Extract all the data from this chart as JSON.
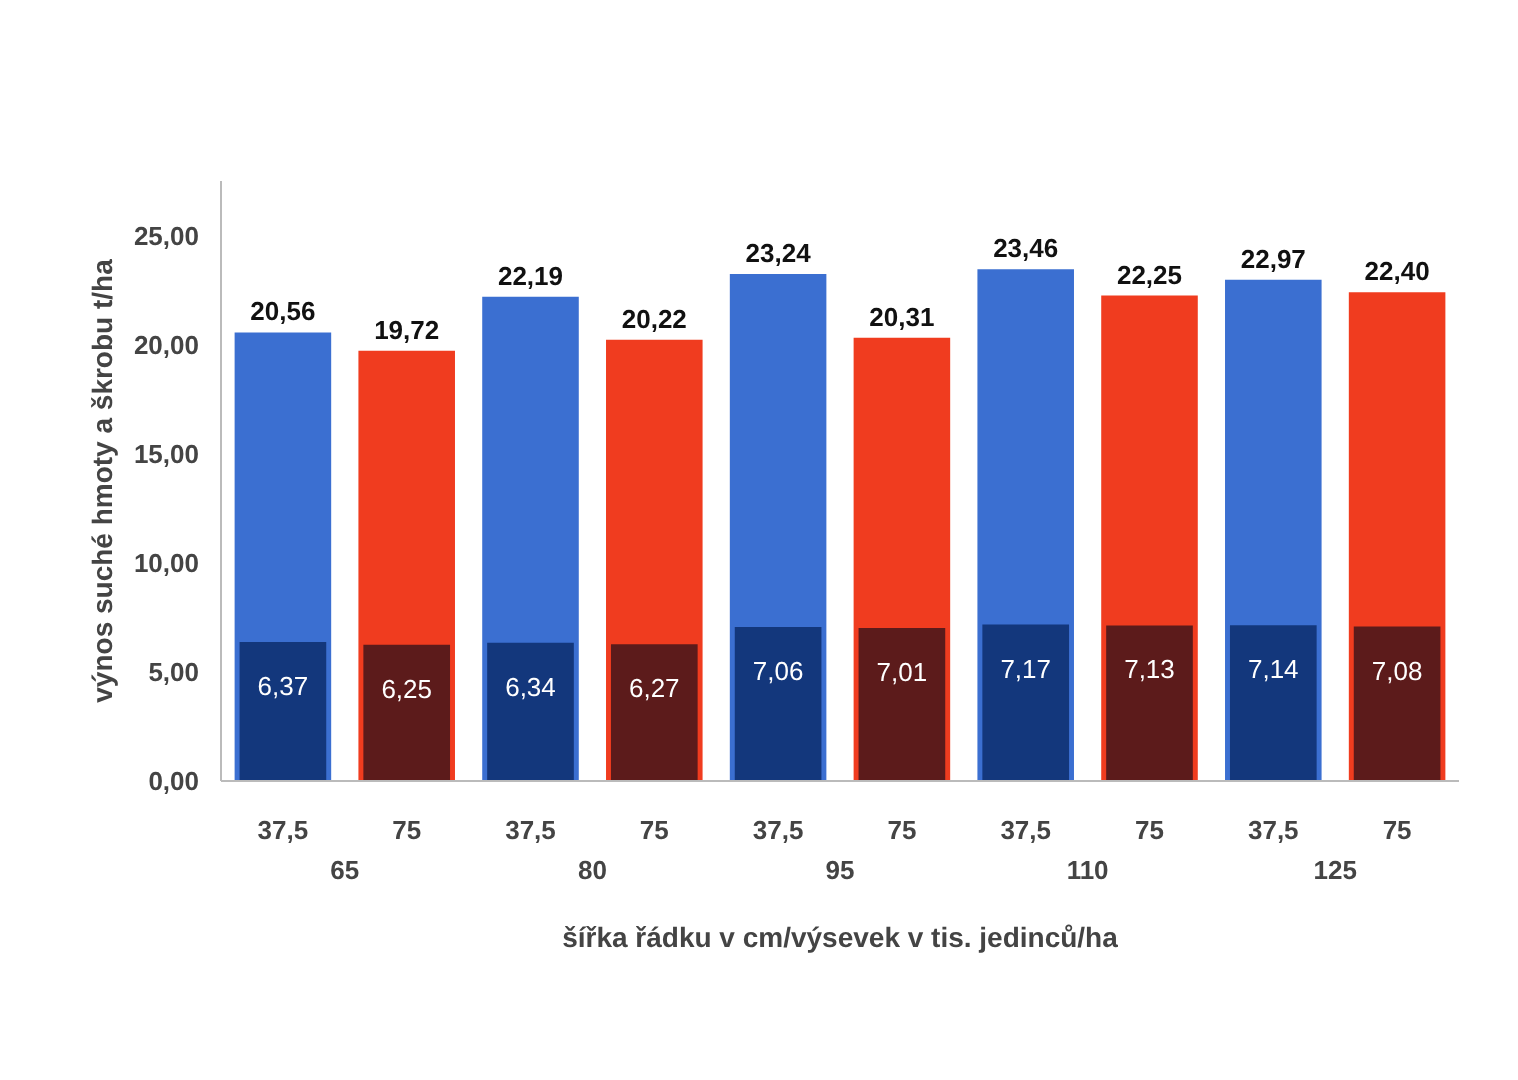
{
  "chart_data": {
    "type": "bar",
    "xlabel": "šířka řádku v cm/výsevek v tis. jedinců/ha",
    "ylabel": "výnos suché hmoty a škrobu t/ha",
    "categories": [
      "37,5",
      "75",
      "37,5",
      "75",
      "37,5",
      "75",
      "37,5",
      "75",
      "37,5",
      "75"
    ],
    "annotations": [
      "65",
      "80",
      "95",
      "110",
      "125"
    ],
    "series": [
      {
        "colors": [
          "#3b6fd1",
          "#f03c1f",
          "#3b6fd1",
          "#f03c1f",
          "#3b6fd1",
          "#f03c1f",
          "#3b6fd1",
          "#f03c1f",
          "#3b6fd1",
          "#f03c1f"
        ],
        "values": [
          20.56,
          19.72,
          22.19,
          20.22,
          23.24,
          20.31,
          23.46,
          22.25,
          22.97,
          22.4
        ],
        "value_labels": [
          "20,56",
          "19,72",
          "22,19",
          "20,22",
          "23,24",
          "20,31",
          "23,46",
          "22,25",
          "22,97",
          "22,40"
        ]
      },
      {
        "colors": [
          "#13377c",
          "#5c1b1b",
          "#13377c",
          "#5c1b1b",
          "#13377c",
          "#5c1b1b",
          "#13377c",
          "#5c1b1b",
          "#13377c",
          "#5c1b1b"
        ],
        "values": [
          6.37,
          6.25,
          6.34,
          6.27,
          7.06,
          7.01,
          7.17,
          7.13,
          7.14,
          7.08
        ],
        "value_labels": [
          "6,37",
          "6,25",
          "6,34",
          "6,27",
          "7,06",
          "7,01",
          "7,17",
          "7,13",
          "7,14",
          "7,08"
        ]
      }
    ],
    "ylim": [
      0,
      27.5
    ],
    "yticks": [
      {
        "value": 0,
        "label": "0,00"
      },
      {
        "value": 5,
        "label": "5,00"
      },
      {
        "value": 10,
        "label": "10,00"
      },
      {
        "value": 15,
        "label": "15,00"
      },
      {
        "value": 20,
        "label": "20,00"
      },
      {
        "value": 25,
        "label": "25,00"
      }
    ],
    "grid": false
  }
}
